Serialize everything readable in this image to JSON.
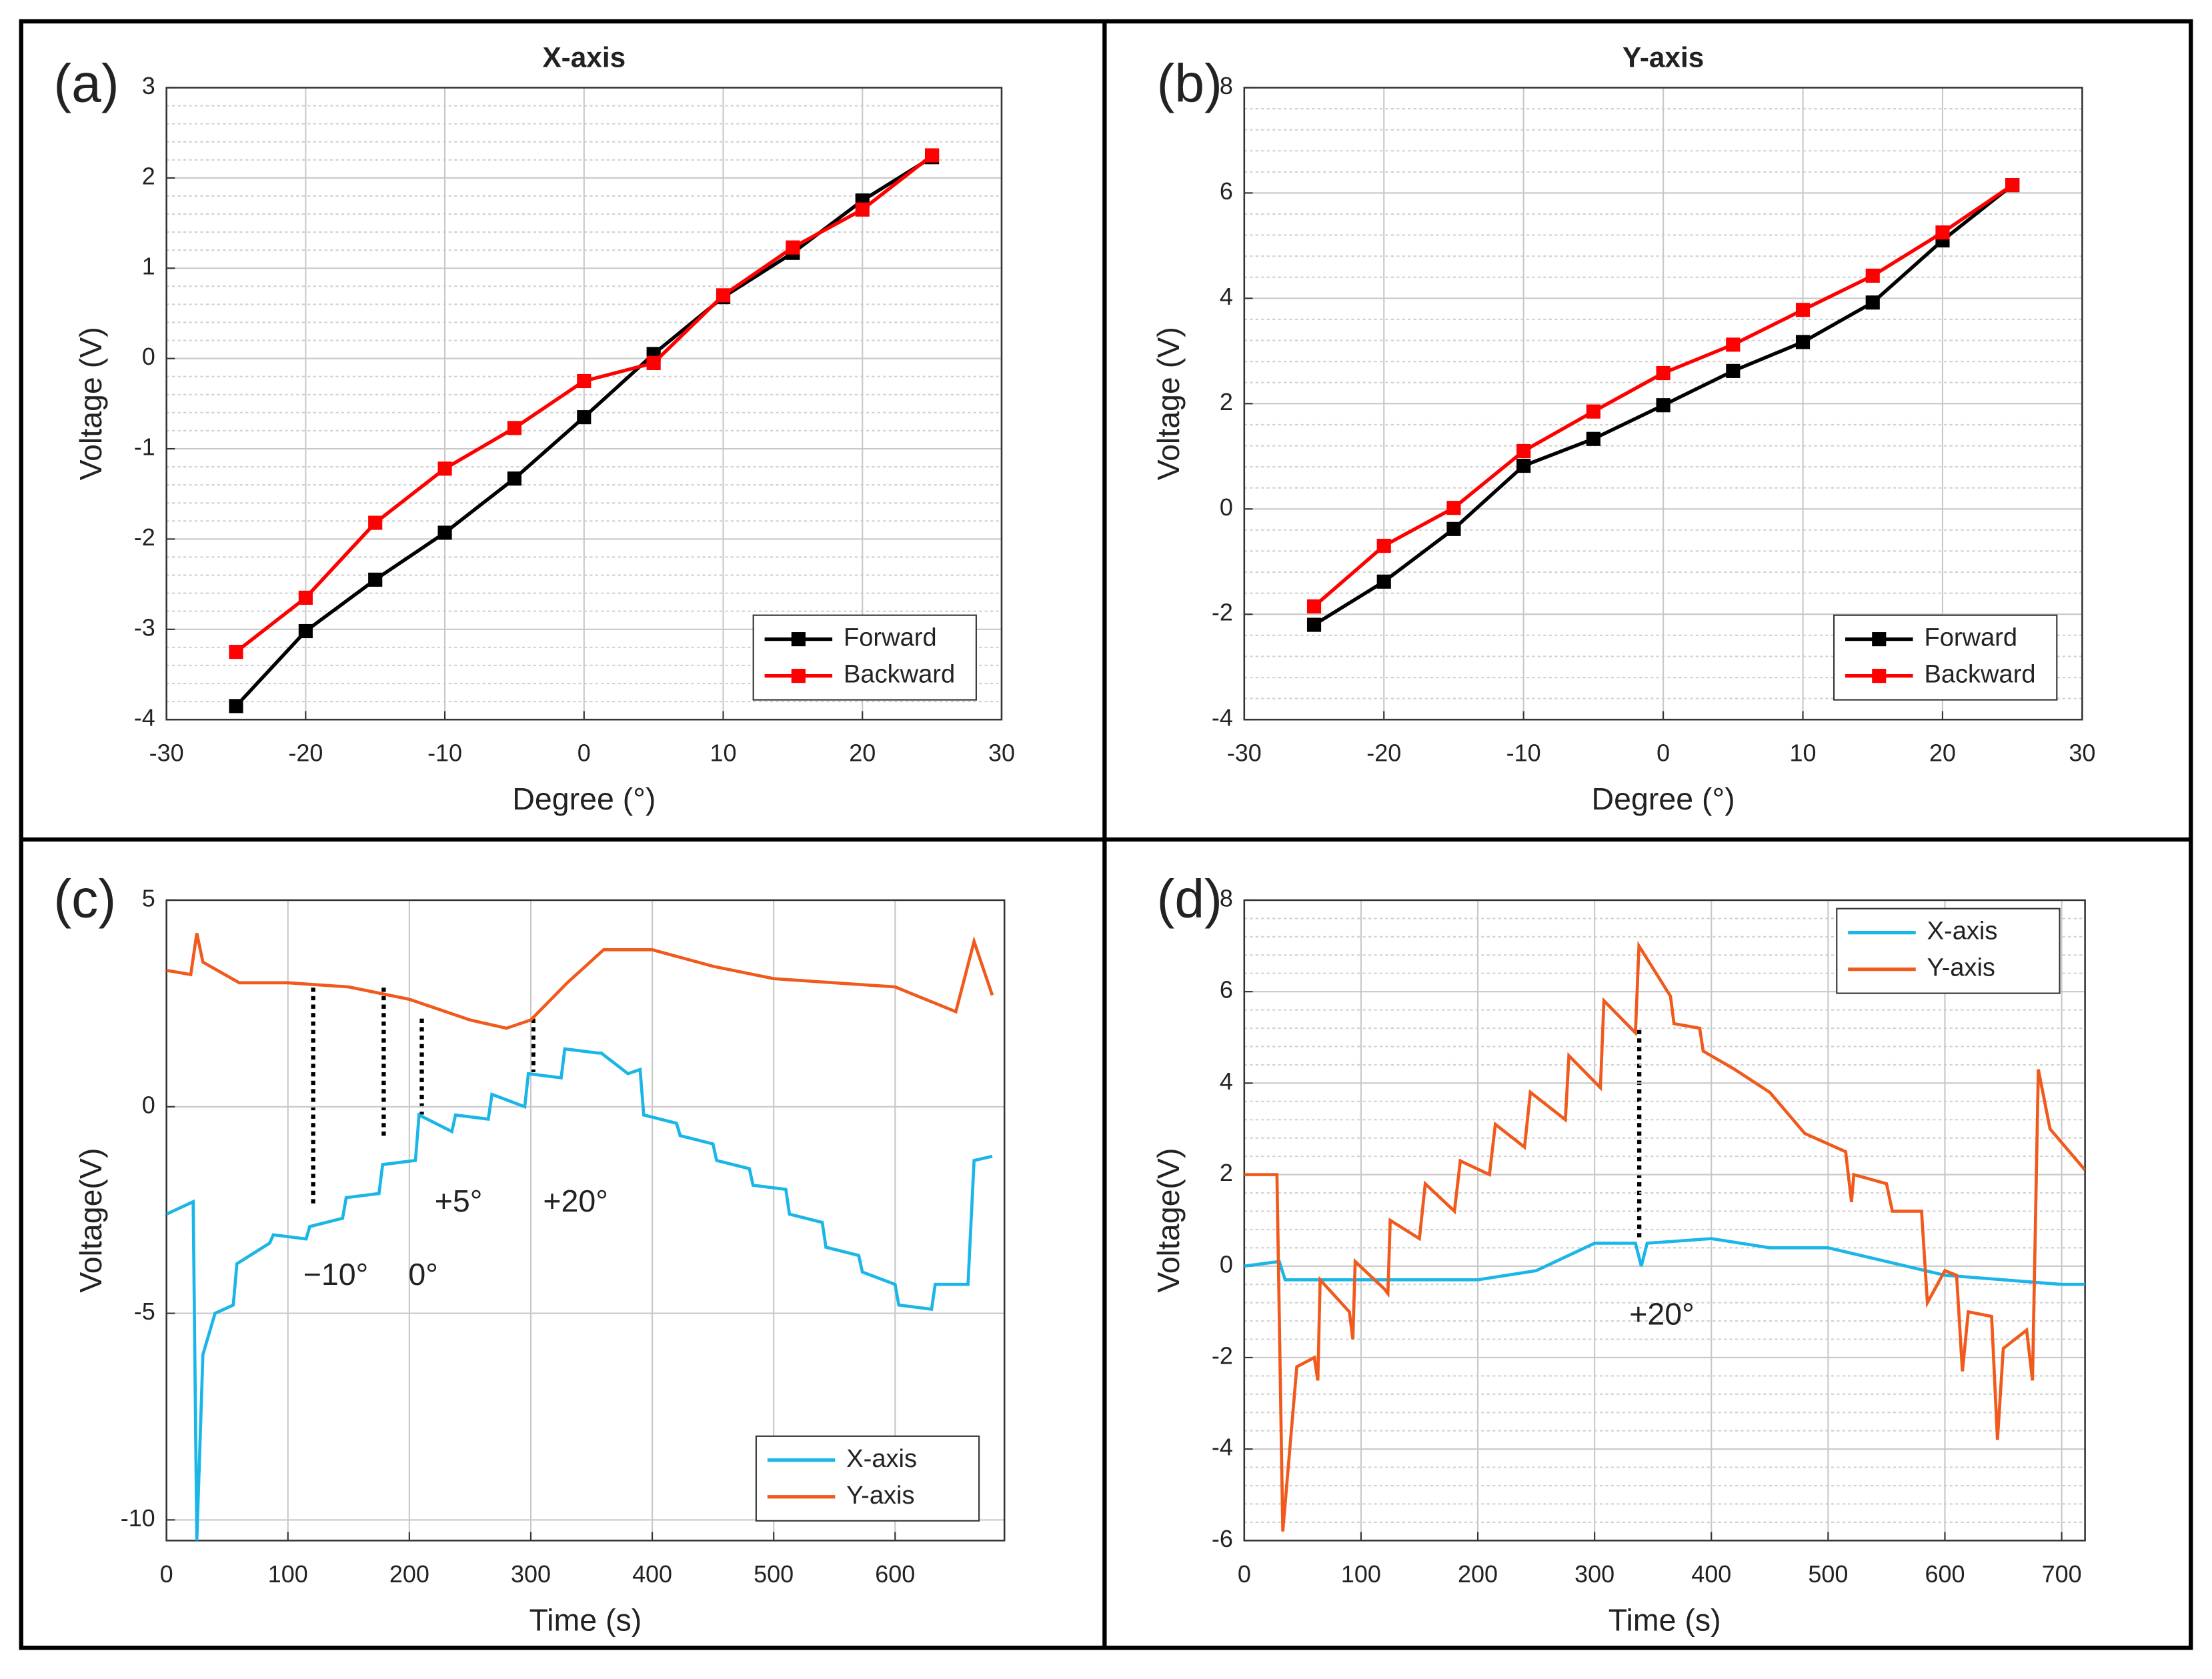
{
  "chart_data": [
    {
      "type": "line",
      "panel_label": "(a)",
      "title": "X-axis",
      "xlabel": "Degree (°)",
      "ylabel": "Voltage (V)",
      "x": [
        -25,
        -20,
        -15,
        -10,
        -5,
        0,
        5,
        10,
        15,
        20,
        25
      ],
      "series": [
        {
          "name": "Forward",
          "color": "#000000",
          "values": [
            -3.85,
            -3.02,
            -2.45,
            -1.93,
            -1.33,
            -0.65,
            0.05,
            0.68,
            1.17,
            1.75,
            2.23
          ]
        },
        {
          "name": "Backward",
          "color": "#ff0000",
          "values": [
            -3.25,
            -2.65,
            -1.82,
            -1.22,
            -0.77,
            -0.25,
            -0.05,
            0.7,
            1.23,
            1.65,
            2.25
          ]
        }
      ],
      "markers": true,
      "xlim": [
        -30,
        30
      ],
      "xticks": [
        -30,
        -20,
        -10,
        0,
        10,
        20,
        30
      ],
      "ylim": [
        -4,
        3
      ],
      "yticks": [
        -4,
        -3,
        -2,
        -1,
        0,
        1,
        2,
        3
      ],
      "grid": true,
      "minor_grid": true,
      "legend": "lower right"
    },
    {
      "type": "line",
      "panel_label": "(b)",
      "title": "Y-axis",
      "xlabel": "Degree (°)",
      "ylabel": "Voltage (V)",
      "x": [
        -25,
        -20,
        -15,
        -10,
        -5,
        0,
        5,
        10,
        15,
        20,
        25
      ],
      "series": [
        {
          "name": "Forward",
          "color": "#000000",
          "values": [
            -2.2,
            -1.38,
            -0.38,
            0.82,
            1.33,
            1.97,
            2.62,
            3.17,
            3.92,
            5.1,
            6.15
          ]
        },
        {
          "name": "Backward",
          "color": "#ff0000",
          "values": [
            -1.85,
            -0.7,
            0.02,
            1.1,
            1.85,
            2.58,
            3.12,
            3.78,
            4.43,
            5.25,
            6.15
          ]
        }
      ],
      "markers": true,
      "xlim": [
        -30,
        30
      ],
      "xticks": [
        -30,
        -20,
        -10,
        0,
        10,
        20,
        30
      ],
      "ylim": [
        -4,
        8
      ],
      "yticks": [
        -4,
        -2,
        0,
        2,
        4,
        6,
        8
      ],
      "grid": true,
      "minor_grid": true,
      "legend": "lower right"
    },
    {
      "type": "line",
      "panel_label": "(c)",
      "xlabel": "Time (s)",
      "ylabel": "Voltage(V)",
      "series": [
        {
          "name": "X-axis",
          "color": "#1ab6e8",
          "x": [
            0,
            22,
            25,
            30,
            40,
            55,
            58,
            85,
            88,
            115,
            118,
            145,
            148,
            175,
            178,
            205,
            208,
            235,
            238,
            265,
            268,
            295,
            298,
            325,
            328,
            355,
            358,
            380,
            390,
            393,
            420,
            423,
            450,
            453,
            480,
            483,
            510,
            513,
            540,
            543,
            570,
            573,
            600,
            603,
            630,
            633,
            660,
            665,
            680
          ],
          "values": [
            -2.6,
            -2.3,
            -10.5,
            -6,
            -5,
            -4.8,
            -3.8,
            -3.3,
            -3.1,
            -3.2,
            -2.9,
            -2.7,
            -2.2,
            -2.1,
            -1.4,
            -1.3,
            -0.2,
            -0.6,
            -0.2,
            -0.3,
            0.3,
            0,
            0.8,
            0.7,
            1.4,
            1.3,
            1.3,
            0.8,
            0.9,
            -0.2,
            -0.4,
            -0.7,
            -0.9,
            -1.3,
            -1.5,
            -1.9,
            -2,
            -2.6,
            -2.8,
            -3.4,
            -3.6,
            -4,
            -4.3,
            -4.8,
            -4.9,
            -4.3,
            -4.3,
            -1.3,
            -1.2
          ]
        },
        {
          "name": "Y-axis",
          "color": "#f05a1c",
          "x": [
            0,
            20,
            25,
            30,
            60,
            100,
            150,
            200,
            250,
            280,
            300,
            330,
            360,
            400,
            450,
            500,
            550,
            600,
            650,
            665,
            680
          ],
          "values": [
            3.3,
            3.2,
            4.2,
            3.5,
            3,
            3,
            2.9,
            2.6,
            2.1,
            1.9,
            2.1,
            3,
            3.8,
            3.8,
            3.4,
            3.1,
            3,
            2.9,
            2.3,
            4,
            2.7
          ]
        }
      ],
      "markers": false,
      "xlim": [
        0,
        690
      ],
      "xticks": [
        0,
        100,
        200,
        300,
        400,
        500,
        600
      ],
      "ylim": [
        -10.5,
        5
      ],
      "yticks": [
        -10,
        -5,
        0,
        5
      ],
      "grid": true,
      "minor_grid": false,
      "legend": "lower right",
      "annotations": [
        "−10°",
        "0°",
        "+5°",
        "+20°"
      ]
    },
    {
      "type": "line",
      "panel_label": "(d)",
      "xlabel": "Time (s)",
      "ylabel": "Voltage(V)",
      "series": [
        {
          "name": "X-axis",
          "color": "#1ab6e8",
          "x": [
            0,
            30,
            35,
            100,
            200,
            250,
            300,
            335,
            340,
            345,
            400,
            450,
            500,
            550,
            600,
            650,
            700,
            720
          ],
          "values": [
            0,
            0.1,
            -0.3,
            -0.3,
            -0.3,
            -0.1,
            0.5,
            0.5,
            0,
            0.5,
            0.6,
            0.4,
            0.4,
            0.1,
            -0.2,
            -0.3,
            -0.4,
            -0.4
          ]
        },
        {
          "name": "Y-axis",
          "color": "#f05a1c",
          "x": [
            0,
            28,
            33,
            45,
            60,
            63,
            65,
            90,
            93,
            95,
            120,
            123,
            125,
            150,
            155,
            180,
            185,
            210,
            215,
            240,
            245,
            275,
            278,
            305,
            308,
            335,
            338,
            365,
            368,
            390,
            393,
            420,
            450,
            480,
            515,
            520,
            522,
            550,
            555,
            580,
            585,
            600,
            610,
            615,
            620,
            640,
            645,
            650,
            670,
            675,
            680,
            690,
            720
          ],
          "values": [
            2,
            2,
            -5.8,
            -2.2,
            -2,
            -2.5,
            -0.3,
            -1,
            -1.6,
            0.1,
            -0.5,
            -0.6,
            1,
            0.6,
            1.8,
            1.2,
            2.3,
            2,
            3.1,
            2.6,
            3.8,
            3.2,
            4.6,
            3.9,
            5.8,
            5.1,
            7,
            5.9,
            5.3,
            5.2,
            4.7,
            4.3,
            3.8,
            2.9,
            2.5,
            1.4,
            2,
            1.8,
            1.2,
            1.2,
            -0.8,
            -0.1,
            -0.2,
            -2.3,
            -1,
            -1.1,
            -3.8,
            -1.8,
            -1.4,
            -2.5,
            4.3,
            3,
            2.1
          ]
        }
      ],
      "markers": false,
      "xlim": [
        0,
        720
      ],
      "xticks": [
        0,
        100,
        200,
        300,
        400,
        500,
        600,
        700
      ],
      "ylim": [
        -6,
        8
      ],
      "yticks": [
        -6,
        -4,
        -2,
        0,
        2,
        4,
        6,
        8
      ],
      "grid": true,
      "minor_grid": true,
      "legend": "upper right",
      "annotations": [
        "+20°"
      ]
    }
  ]
}
